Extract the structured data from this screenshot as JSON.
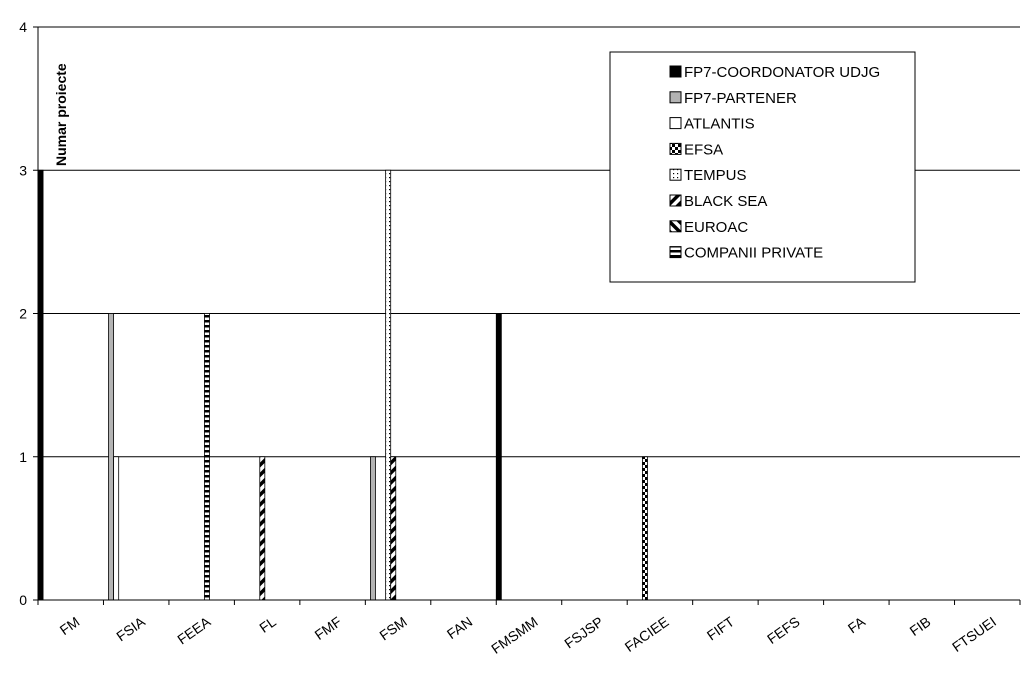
{
  "chart_data": {
    "type": "bar",
    "title": "",
    "xlabel": "",
    "ylabel": "Numar proiecte",
    "ylim": [
      0,
      4
    ],
    "yticks": [
      0,
      1,
      2,
      3,
      4
    ],
    "grid": true,
    "legend_position": "top-right",
    "categories": [
      "FM",
      "FSIA",
      "FEEA",
      "FL",
      "FMF",
      "FSM",
      "FAN",
      "FMSMM",
      "FSJSP",
      "FACIEE",
      "FIFT",
      "FEFS",
      "FA",
      "FIB",
      "FTSUEI"
    ],
    "series": [
      {
        "name": "FP7-COORDONATOR UDJG",
        "pattern": "solid-black",
        "values": [
          3,
          0,
          0,
          0,
          0,
          0,
          0,
          2,
          0,
          0,
          0,
          0,
          0,
          0,
          0
        ]
      },
      {
        "name": "FP7-PARTENER",
        "pattern": "solid-gray",
        "values": [
          0,
          2,
          0,
          0,
          0,
          1,
          0,
          0,
          0,
          0,
          0,
          0,
          0,
          0,
          0
        ]
      },
      {
        "name": "ATLANTIS",
        "pattern": "white",
        "values": [
          0,
          1,
          0,
          0,
          0,
          0,
          0,
          0,
          0,
          0,
          0,
          0,
          0,
          0,
          0
        ]
      },
      {
        "name": "EFSA",
        "pattern": "checker",
        "values": [
          0,
          0,
          0,
          0,
          0,
          0,
          0,
          0,
          0,
          1,
          0,
          0,
          0,
          0,
          0
        ]
      },
      {
        "name": "TEMPUS",
        "pattern": "dots",
        "values": [
          0,
          0,
          0,
          0,
          0,
          3,
          0,
          0,
          0,
          0,
          0,
          0,
          0,
          0,
          0
        ]
      },
      {
        "name": "BLACK SEA",
        "pattern": "diag-forward",
        "values": [
          0,
          0,
          0,
          1,
          0,
          1,
          0,
          0,
          0,
          0,
          0,
          0,
          0,
          0,
          0
        ]
      },
      {
        "name": "EUROAC",
        "pattern": "diag-back",
        "values": [
          0,
          0,
          0,
          0,
          0,
          0,
          0,
          0,
          0,
          0,
          0,
          0,
          0,
          0,
          0
        ]
      },
      {
        "name": "COMPANII PRIVATE",
        "pattern": "horizontal-stripes",
        "values": [
          0,
          0,
          2,
          0,
          0,
          0,
          0,
          0,
          0,
          0,
          0,
          0,
          0,
          0,
          0
        ]
      }
    ]
  }
}
